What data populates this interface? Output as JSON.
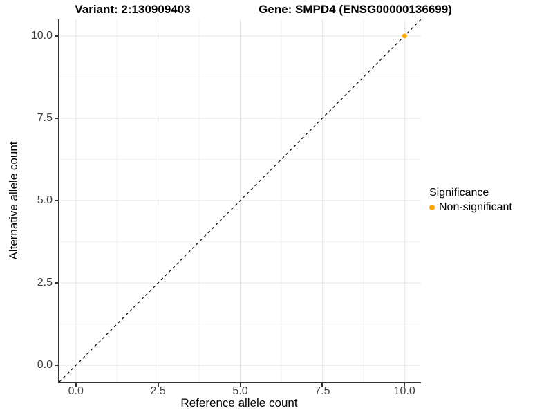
{
  "titles": {
    "variant": "Variant: 2:130909403",
    "gene": "Gene: SMPD4 (ENSG00000136699)"
  },
  "axes": {
    "x": {
      "label": "Reference allele count",
      "tick_labels": [
        "0.0",
        "2.5",
        "5.0",
        "7.5",
        "10.0"
      ],
      "tick_values": [
        0,
        2.5,
        5,
        7.5,
        10
      ]
    },
    "y": {
      "label": "Alternative allele count",
      "tick_labels": [
        "0.0",
        "2.5",
        "5.0",
        "7.5",
        "10.0"
      ],
      "tick_values": [
        0,
        2.5,
        5,
        7.5,
        10
      ]
    }
  },
  "legend": {
    "title": "Significance",
    "items": [
      {
        "label": "Non-significant",
        "color": "#FFA500",
        "marker": "point-marker"
      }
    ]
  },
  "colors": {
    "point_orange": "#FFA500",
    "grid_major": "#e4e4e4",
    "grid_minor": "#f1f1f1",
    "axis_line": "#333333",
    "tick_label": "#404040",
    "identity_line": "#000000"
  },
  "chart_data": {
    "type": "scatter",
    "title": "Variant: 2:130909403    Gene: SMPD4 (ENSG00000136699)",
    "xlabel": "Reference allele count",
    "ylabel": "Alternative allele count",
    "xlim": [
      -0.5,
      10.5
    ],
    "ylim": [
      -0.5,
      10.5
    ],
    "x_ticks": [
      0,
      2.5,
      5,
      7.5,
      10
    ],
    "y_ticks": [
      0,
      2.5,
      5,
      7.5,
      10
    ],
    "grid": "major and minor, light gray on white",
    "legend_position": "right",
    "series": [
      {
        "name": "Non-significant",
        "color": "#FFA500",
        "points": [
          {
            "x": 10,
            "y": 10
          }
        ]
      }
    ],
    "reference_line": {
      "type": "identity y=x",
      "from": [
        -0.5,
        -0.5
      ],
      "to": [
        10.5,
        10.5
      ],
      "style": "dashed",
      "color": "#000000",
      "dash": [
        4,
        4
      ]
    }
  }
}
